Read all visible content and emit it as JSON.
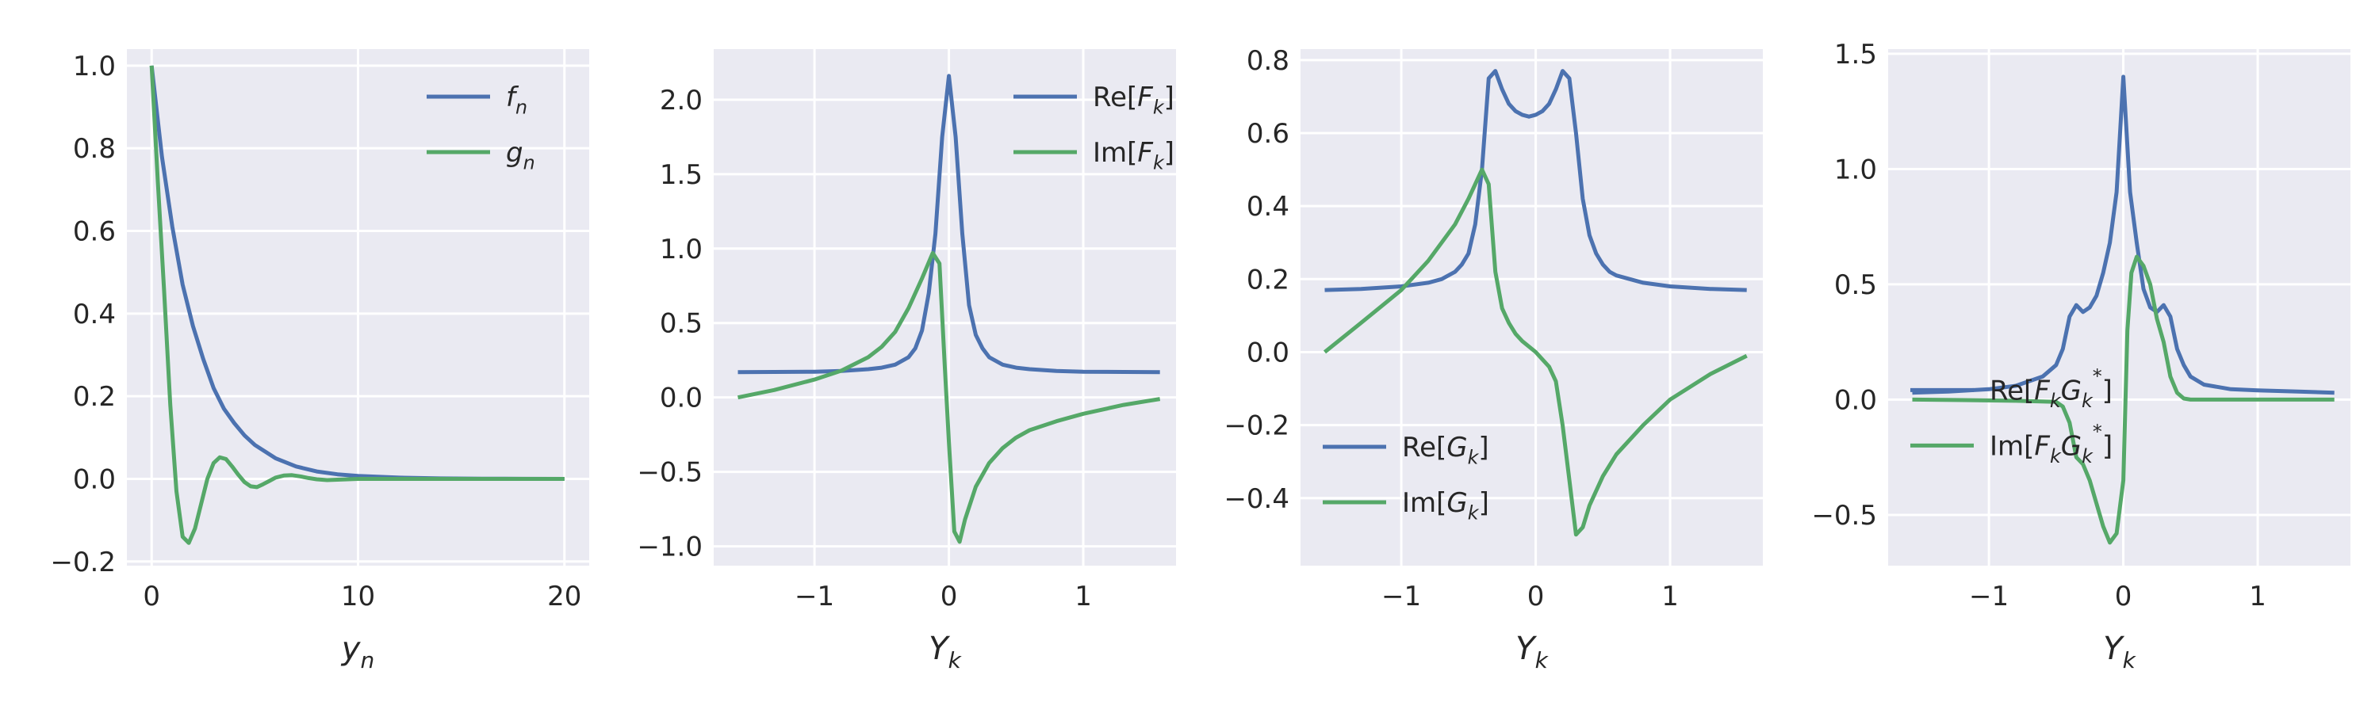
{
  "chart_data": [
    {
      "type": "line",
      "xlabel": "y_n",
      "xlim": [
        -1.2,
        21.2
      ],
      "ylim": [
        -0.21,
        1.04
      ],
      "xticks": [
        0,
        10,
        20
      ],
      "yticks": [
        -0.2,
        0.0,
        0.2,
        0.4,
        0.6,
        0.8,
        1.0
      ],
      "ytick_labels": [
        "−0.2",
        "0.0",
        "0.2",
        "0.4",
        "0.6",
        "0.8",
        "1.0"
      ],
      "legend_position": "upper-right",
      "grid": true,
      "series": [
        {
          "name": "f_n",
          "color": "#4c72b0",
          "x": [
            0,
            0.5,
            1,
            1.5,
            2,
            2.5,
            3,
            3.5,
            4,
            4.5,
            5,
            6,
            7,
            8,
            9,
            10,
            12,
            14,
            16,
            18,
            20
          ],
          "y": [
            1.0,
            0.78,
            0.61,
            0.47,
            0.37,
            0.29,
            0.22,
            0.17,
            0.135,
            0.105,
            0.082,
            0.05,
            0.03,
            0.018,
            0.011,
            0.007,
            0.003,
            0.001,
            0.0005,
            0.0002,
            0.0
          ]
        },
        {
          "name": "g_n",
          "color": "#55a868",
          "x": [
            0,
            0.3,
            0.6,
            0.9,
            1.2,
            1.5,
            1.8,
            2.1,
            2.4,
            2.7,
            3.0,
            3.3,
            3.6,
            3.9,
            4.2,
            4.5,
            4.8,
            5.1,
            5.4,
            5.7,
            6.0,
            6.4,
            6.8,
            7.2,
            7.6,
            8.0,
            8.5,
            9,
            10,
            11,
            12,
            14,
            16,
            18,
            20
          ],
          "y": [
            1.0,
            0.72,
            0.46,
            0.18,
            -0.03,
            -0.14,
            -0.155,
            -0.12,
            -0.06,
            0.0,
            0.038,
            0.052,
            0.048,
            0.03,
            0.01,
            -0.008,
            -0.018,
            -0.02,
            -0.013,
            -0.005,
            0.003,
            0.008,
            0.009,
            0.006,
            0.002,
            -0.001,
            -0.003,
            -0.002,
            0.0,
            0.0,
            0.0,
            0.0,
            0.0,
            0.0,
            0.0
          ]
        }
      ]
    },
    {
      "type": "line",
      "xlabel": "Y_k",
      "xlim": [
        -1.75,
        1.69
      ],
      "ylim": [
        -1.13,
        2.34
      ],
      "xticks": [
        -1,
        0,
        1
      ],
      "xtick_labels": [
        "−1",
        "0",
        "1"
      ],
      "yticks": [
        -1.0,
        -0.5,
        0.0,
        0.5,
        1.0,
        1.5,
        2.0
      ],
      "ytick_labels": [
        "−1.0",
        "−0.5",
        "0.0",
        "0.5",
        "1.0",
        "1.5",
        "2.0"
      ],
      "legend_position": "upper-right",
      "grid": true,
      "series": [
        {
          "name": "Re[F_k]",
          "color": "#4c72b0",
          "x": [
            -1.57,
            -1.3,
            -1.0,
            -0.8,
            -0.6,
            -0.5,
            -0.4,
            -0.3,
            -0.25,
            -0.2,
            -0.15,
            -0.1,
            -0.05,
            0.0,
            0.05,
            0.1,
            0.15,
            0.2,
            0.25,
            0.3,
            0.4,
            0.5,
            0.6,
            0.8,
            1.0,
            1.3,
            1.57
          ],
          "y": [
            0.17,
            0.171,
            0.173,
            0.178,
            0.19,
            0.2,
            0.22,
            0.27,
            0.33,
            0.45,
            0.7,
            1.1,
            1.75,
            2.16,
            1.75,
            1.1,
            0.62,
            0.42,
            0.33,
            0.27,
            0.22,
            0.2,
            0.19,
            0.178,
            0.173,
            0.171,
            0.17
          ]
        },
        {
          "name": "Im[F_k]",
          "color": "#55a868",
          "x": [
            -1.57,
            -1.3,
            -1.0,
            -0.8,
            -0.6,
            -0.5,
            -0.4,
            -0.3,
            -0.2,
            -0.12,
            -0.07,
            -0.03,
            0.0,
            0.04,
            0.08,
            0.12,
            0.2,
            0.3,
            0.4,
            0.5,
            0.6,
            0.8,
            1.0,
            1.3,
            1.57
          ],
          "y": [
            0.0,
            0.05,
            0.12,
            0.18,
            0.27,
            0.34,
            0.44,
            0.6,
            0.8,
            0.97,
            0.9,
            0.2,
            -0.3,
            -0.9,
            -0.97,
            -0.82,
            -0.6,
            -0.44,
            -0.34,
            -0.27,
            -0.22,
            -0.16,
            -0.11,
            -0.05,
            -0.01
          ]
        }
      ]
    },
    {
      "type": "line",
      "xlabel": "Y_k",
      "xlim": [
        -1.75,
        1.69
      ],
      "ylim": [
        -0.585,
        0.83
      ],
      "xticks": [
        -1,
        0,
        1
      ],
      "xtick_labels": [
        "−1",
        "0",
        "1"
      ],
      "yticks": [
        -0.4,
        -0.2,
        0.0,
        0.2,
        0.4,
        0.6,
        0.8
      ],
      "ytick_labels": [
        "−0.4",
        "−0.2",
        "0.0",
        "0.2",
        "0.4",
        "0.6",
        "0.8"
      ],
      "legend_position": "lower-left",
      "grid": true,
      "series": [
        {
          "name": "Re[G_k]",
          "color": "#4c72b0",
          "x": [
            -1.57,
            -1.3,
            -1.0,
            -0.8,
            -0.7,
            -0.6,
            -0.55,
            -0.5,
            -0.45,
            -0.4,
            -0.35,
            -0.3,
            -0.25,
            -0.2,
            -0.15,
            -0.1,
            -0.05,
            0.0,
            0.05,
            0.1,
            0.15,
            0.2,
            0.25,
            0.3,
            0.35,
            0.4,
            0.45,
            0.5,
            0.55,
            0.6,
            0.7,
            0.8,
            1.0,
            1.3,
            1.57
          ],
          "y": [
            0.17,
            0.173,
            0.18,
            0.19,
            0.2,
            0.22,
            0.24,
            0.27,
            0.35,
            0.5,
            0.75,
            0.77,
            0.72,
            0.68,
            0.66,
            0.65,
            0.645,
            0.65,
            0.66,
            0.68,
            0.72,
            0.77,
            0.75,
            0.6,
            0.42,
            0.32,
            0.27,
            0.24,
            0.22,
            0.21,
            0.2,
            0.19,
            0.18,
            0.173,
            0.17
          ]
        },
        {
          "name": "Im[G_k]",
          "color": "#55a868",
          "x": [
            -1.57,
            -1.3,
            -1.0,
            -0.8,
            -0.6,
            -0.5,
            -0.4,
            -0.35,
            -0.3,
            -0.25,
            -0.2,
            -0.15,
            -0.1,
            0.0,
            0.1,
            0.15,
            0.2,
            0.25,
            0.3,
            0.35,
            0.4,
            0.5,
            0.6,
            0.8,
            1.0,
            1.3,
            1.57
          ],
          "y": [
            0.0,
            0.08,
            0.17,
            0.25,
            0.35,
            0.42,
            0.5,
            0.46,
            0.22,
            0.12,
            0.08,
            0.05,
            0.03,
            0.0,
            -0.04,
            -0.08,
            -0.2,
            -0.35,
            -0.5,
            -0.48,
            -0.42,
            -0.34,
            -0.28,
            -0.2,
            -0.13,
            -0.06,
            -0.01
          ]
        }
      ]
    },
    {
      "type": "line",
      "xlabel": "Y_k",
      "xlim": [
        -1.75,
        1.69
      ],
      "ylim": [
        -0.72,
        1.52
      ],
      "xticks": [
        -1,
        0,
        1
      ],
      "xtick_labels": [
        "−1",
        "0",
        "1"
      ],
      "yticks": [
        -0.5,
        0.0,
        0.5,
        1.0,
        1.5
      ],
      "ytick_labels": [
        "−0.5",
        "0.0",
        "0.5",
        "1.0",
        "1.5"
      ],
      "legend_position": "center-left",
      "grid": true,
      "series": [
        {
          "name": "Re[F_kG_k^*]",
          "color": "#4c72b0",
          "x": [
            -1.57,
            -1.3,
            -1.0,
            -0.8,
            -0.6,
            -0.5,
            -0.45,
            -0.4,
            -0.35,
            -0.3,
            -0.25,
            -0.2,
            -0.15,
            -0.1,
            -0.05,
            0.0,
            0.05,
            0.1,
            0.15,
            0.2,
            0.25,
            0.3,
            0.35,
            0.4,
            0.45,
            0.5,
            0.6,
            0.8,
            1.0,
            1.3,
            1.57
          ],
          "y": [
            0.03,
            0.035,
            0.045,
            0.06,
            0.1,
            0.15,
            0.22,
            0.36,
            0.41,
            0.38,
            0.4,
            0.45,
            0.55,
            0.68,
            0.9,
            1.4,
            0.9,
            0.68,
            0.48,
            0.4,
            0.38,
            0.41,
            0.36,
            0.22,
            0.15,
            0.1,
            0.065,
            0.045,
            0.04,
            0.035,
            0.03
          ]
        },
        {
          "name": "Im[F_kG_k^*]",
          "color": "#55a868",
          "x": [
            -1.57,
            -1.2,
            -0.8,
            -0.5,
            -0.45,
            -0.4,
            -0.35,
            -0.3,
            -0.25,
            -0.2,
            -0.15,
            -0.1,
            -0.05,
            0.0,
            0.03,
            0.06,
            0.1,
            0.15,
            0.2,
            0.25,
            0.3,
            0.35,
            0.4,
            0.45,
            0.5,
            0.6,
            0.8,
            1.2,
            1.57
          ],
          "y": [
            0.0,
            -0.002,
            -0.005,
            -0.01,
            -0.03,
            -0.1,
            -0.25,
            -0.28,
            -0.35,
            -0.45,
            -0.55,
            -0.62,
            -0.58,
            -0.35,
            0.3,
            0.55,
            0.62,
            0.58,
            0.5,
            0.35,
            0.25,
            0.1,
            0.03,
            0.005,
            0.0,
            0.0,
            0.0,
            0.0,
            0.0
          ]
        }
      ]
    }
  ]
}
